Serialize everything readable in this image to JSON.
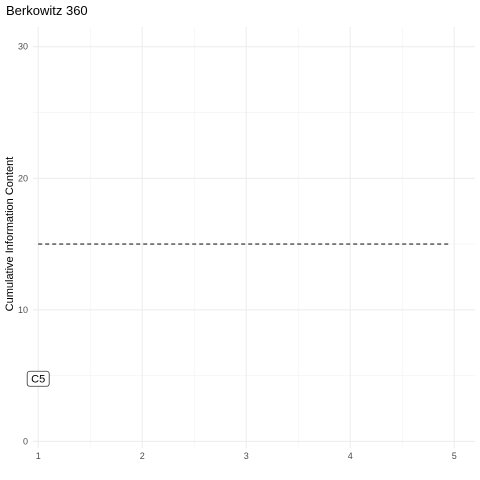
{
  "chart_data": {
    "type": "line",
    "title": "Berkowitz 360",
    "xlabel": "",
    "ylabel": "Cumulative Information Content",
    "xlim": [
      0.95,
      5.2
    ],
    "ylim": [
      -0.5,
      31.5
    ],
    "x_ticks": [
      "1",
      "2",
      "3",
      "4",
      "5"
    ],
    "y_ticks": [
      "0",
      "10",
      "20",
      "30"
    ],
    "grid": true,
    "reference_line": {
      "y": 15,
      "x_start": 1,
      "x_end": 4.97,
      "style": "dashed"
    },
    "annotations": [
      {
        "text": "C5",
        "x": 1,
        "y": 4.8
      }
    ]
  }
}
